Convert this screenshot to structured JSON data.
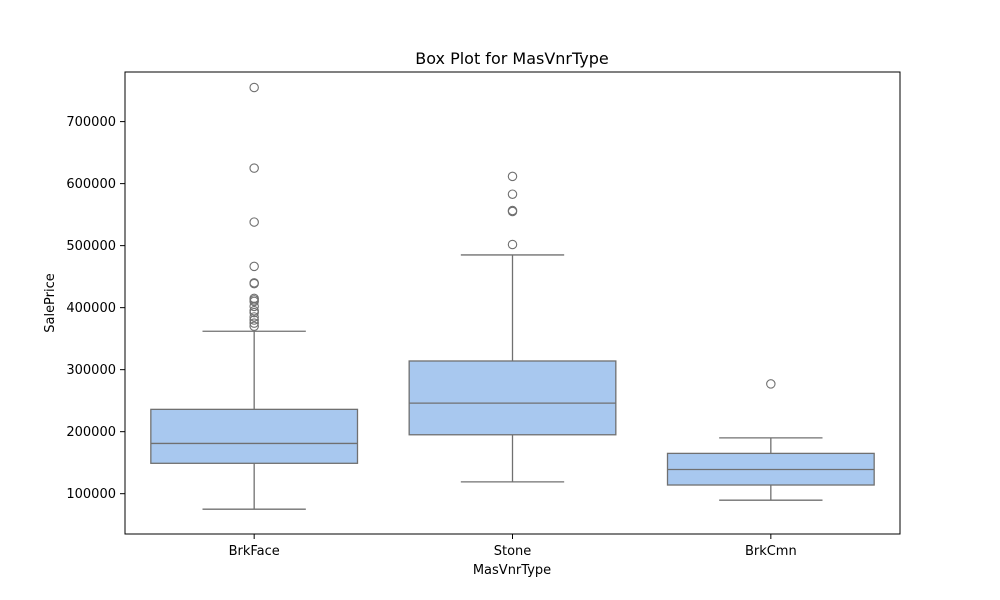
{
  "chart_data": {
    "type": "box",
    "title": "Box Plot for MasVnrType",
    "xlabel": "MasVnrType",
    "ylabel": "SalePrice",
    "ylim": [
      35000,
      780000
    ],
    "yticks": [
      100000,
      200000,
      300000,
      400000,
      500000,
      600000,
      700000
    ],
    "ytick_labels": [
      "100000",
      "200000",
      "300000",
      "400000",
      "500000",
      "600000",
      "700000"
    ],
    "categories": [
      "BrkFace",
      "Stone",
      "BrkCmn"
    ],
    "grid": false,
    "colors": {
      "box_fill": "#a8c8ef",
      "line": "#707070",
      "frame": "#000000"
    },
    "boxes": [
      {
        "category": "BrkFace",
        "whisker_low": 75000,
        "q1": 149000,
        "median": 181000,
        "q3": 236000,
        "whisker_high": 362000,
        "outliers": [
          755000,
          625000,
          538000,
          466500,
          440000,
          438780,
          415000,
          412500,
          410000,
          402000,
          395000,
          392000,
          385000,
          380000,
          375000,
          370000
        ]
      },
      {
        "category": "Stone",
        "whisker_low": 119000,
        "q1": 195000,
        "median": 246000,
        "q3": 314000,
        "whisker_high": 485000,
        "outliers": [
          611657,
          582933,
          556581,
          555000,
          501837
        ]
      },
      {
        "category": "BrkCmn",
        "whisker_low": 89500,
        "q1": 114000,
        "median": 139000,
        "q3": 165000,
        "whisker_high": 190000,
        "outliers": [
          277000
        ]
      }
    ]
  }
}
